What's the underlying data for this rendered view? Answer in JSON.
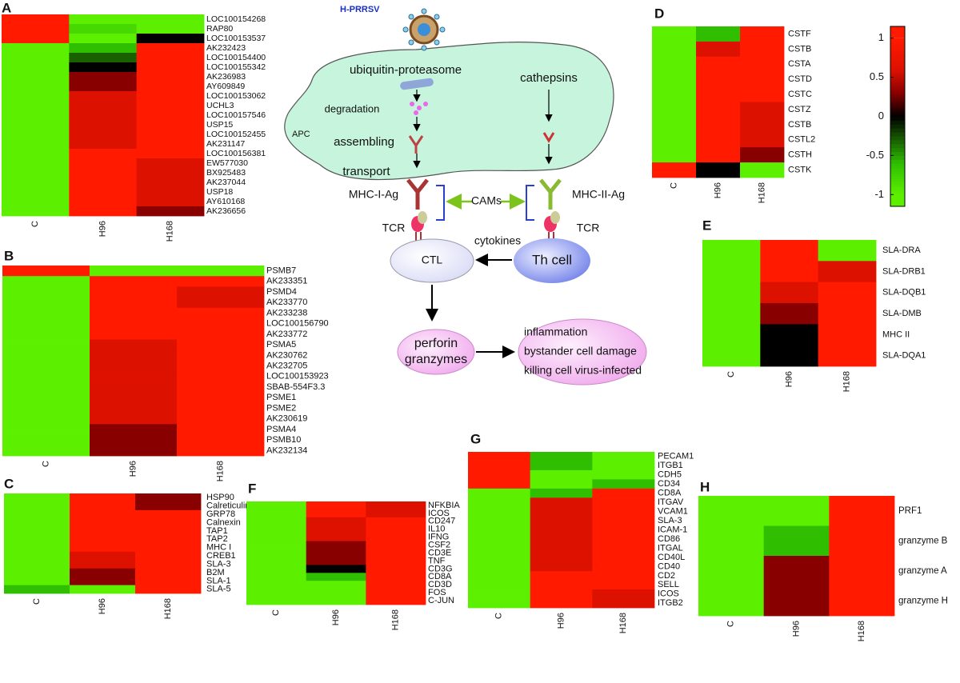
{
  "chart_data": [
    {
      "type": "heatmap",
      "title": "A",
      "columns": [
        "C",
        "H96",
        "H168"
      ],
      "rows": [
        "LOC100154268",
        "RAP80",
        "LOC100153537",
        "AK232423",
        "LOC100154400",
        "LOC100155342",
        "AK236983",
        "AY609849",
        "LOC100153062",
        "UCHL3",
        "LOC100157546",
        "USP15",
        "LOC100152455",
        "AK231147",
        "LOC100156381",
        "EW577030",
        "BX925483",
        "AK237044",
        "USP18",
        "AY610168",
        "AK236656"
      ],
      "values": [
        [
          1,
          -1,
          -1
        ],
        [
          1,
          -0.8,
          -1
        ],
        [
          1,
          -1,
          0
        ],
        [
          -1,
          -0.6,
          1
        ],
        [
          -1,
          -0.3,
          1
        ],
        [
          -1,
          0,
          1
        ],
        [
          -1,
          0.3,
          1
        ],
        [
          -1,
          0.3,
          1
        ],
        [
          -1,
          0.6,
          1
        ],
        [
          -1,
          0.6,
          1
        ],
        [
          -1,
          0.6,
          1
        ],
        [
          -1,
          0.6,
          1
        ],
        [
          -1,
          0.6,
          1
        ],
        [
          -1,
          0.6,
          1
        ],
        [
          -1,
          1,
          1
        ],
        [
          -1,
          1,
          0.6
        ],
        [
          -1,
          1,
          0.6
        ],
        [
          -1,
          1,
          0.6
        ],
        [
          -1,
          1,
          0.6
        ],
        [
          -1,
          1,
          0.6
        ],
        [
          -1,
          1,
          0.3
        ]
      ]
    },
    {
      "type": "heatmap",
      "title": "B",
      "columns": [
        "C",
        "H96",
        "H168"
      ],
      "rows": [
        "PSMB7",
        "AK233351",
        "PSMD4",
        "AK233770",
        "AK233238",
        "LOC100156790",
        "AK233772",
        "PSMA5",
        "AK230762",
        "AK232705",
        "LOC100153923",
        "SBAB-554F3.3",
        "PSME1",
        "PSME2",
        "AK230619",
        "PSMA4",
        "PSMB10",
        "AK232134"
      ],
      "values": [
        [
          1,
          -1,
          -1
        ],
        [
          -1,
          1,
          1
        ],
        [
          -1,
          1,
          0.6
        ],
        [
          -1,
          1,
          0.6
        ],
        [
          -1,
          1,
          1
        ],
        [
          -1,
          1,
          1
        ],
        [
          -1,
          1,
          1
        ],
        [
          -1,
          0.6,
          1
        ],
        [
          -1,
          0.6,
          1
        ],
        [
          -1,
          0.6,
          1
        ],
        [
          -1,
          0.6,
          1
        ],
        [
          -1,
          0.6,
          1
        ],
        [
          -1,
          0.6,
          1
        ],
        [
          -1,
          0.6,
          1
        ],
        [
          -1,
          0.6,
          1
        ],
        [
          -1,
          0.3,
          1
        ],
        [
          -1,
          0.3,
          1
        ],
        [
          -1,
          0.3,
          1
        ]
      ]
    },
    {
      "type": "heatmap",
      "title": "C",
      "columns": [
        "C",
        "H96",
        "H168"
      ],
      "rows": [
        "HSP90",
        "Calreticulin",
        "GRP78",
        "Calnexin",
        "TAP1",
        "TAP2",
        "MHC I",
        "CREB1",
        "SLA-3",
        "B2M",
        "SLA-1",
        "SLA-5"
      ],
      "values": [
        [
          -1,
          1,
          0.3
        ],
        [
          -1,
          1,
          0.3
        ],
        [
          -1,
          1,
          1
        ],
        [
          -1,
          1,
          1
        ],
        [
          -1,
          1,
          1
        ],
        [
          -1,
          1,
          1
        ],
        [
          -1,
          1,
          1
        ],
        [
          -1,
          0.6,
          1
        ],
        [
          -1,
          0.6,
          1
        ],
        [
          -1,
          0.3,
          1
        ],
        [
          -1,
          0.3,
          1
        ],
        [
          -0.6,
          -1,
          1
        ]
      ]
    },
    {
      "type": "heatmap",
      "title": "D",
      "columns": [
        "C",
        "H96",
        "H168"
      ],
      "rows": [
        "CSTF",
        "CSTB",
        "CSTA",
        "CSTD",
        "CSTC",
        "CSTZ",
        "CSTB",
        "CSTL2",
        "CSTH",
        "CSTK"
      ],
      "values": [
        [
          -1,
          -0.6,
          1
        ],
        [
          -1,
          0.6,
          1
        ],
        [
          -1,
          1,
          1
        ],
        [
          -1,
          1,
          1
        ],
        [
          -1,
          1,
          1
        ],
        [
          -1,
          1,
          0.6
        ],
        [
          -1,
          1,
          0.6
        ],
        [
          -1,
          1,
          0.6
        ],
        [
          -1,
          1,
          0.3
        ],
        [
          1,
          0,
          -1
        ]
      ]
    },
    {
      "type": "heatmap",
      "title": "E",
      "columns": [
        "C",
        "H96",
        "H168"
      ],
      "rows": [
        "SLA-DRA",
        "SLA-DRB1",
        "SLA-DQB1",
        "SLA-DMB",
        "MHC II",
        "SLA-DQA1"
      ],
      "values": [
        [
          -1,
          1,
          -1
        ],
        [
          -1,
          1,
          0.6
        ],
        [
          -1,
          0.6,
          1
        ],
        [
          -1,
          0.3,
          1
        ],
        [
          -1,
          0,
          1
        ],
        [
          -1,
          0,
          1
        ]
      ]
    },
    {
      "type": "heatmap",
      "title": "F",
      "columns": [
        "C",
        "H96",
        "H168"
      ],
      "rows": [
        "NFKBIA",
        "ICOS",
        "CD247",
        "IL10",
        "IFNG",
        "CSF2",
        "CD3E",
        "TNF",
        "CD3G",
        "CD8A",
        "CD3D",
        "FOS",
        "C-JUN"
      ],
      "values": [
        [
          -1,
          1,
          0.6
        ],
        [
          -1,
          1,
          0.6
        ],
        [
          -1,
          0.6,
          1
        ],
        [
          -1,
          0.6,
          1
        ],
        [
          -1,
          0.6,
          1
        ],
        [
          -1,
          0.3,
          1
        ],
        [
          -1,
          0.3,
          1
        ],
        [
          -1,
          0.3,
          1
        ],
        [
          -1,
          0,
          1
        ],
        [
          -1,
          -0.6,
          1
        ],
        [
          -1,
          -1,
          1
        ],
        [
          -1,
          -1,
          1
        ],
        [
          -1,
          -1,
          1
        ]
      ]
    },
    {
      "type": "heatmap",
      "title": "G",
      "columns": [
        "C",
        "H96",
        "H168"
      ],
      "rows": [
        "PECAM1",
        "ITGB1",
        "CDH5",
        "CD34",
        "CD8A",
        "ITGAV",
        "VCAM1",
        "SLA-3",
        "ICAM-1",
        "CD86",
        "ITGAL",
        "CD40L",
        "CD40",
        "CD2",
        "SELL",
        "ICOS",
        "ITGB2"
      ],
      "values": [
        [
          1,
          -0.6,
          -1
        ],
        [
          1,
          -0.6,
          -1
        ],
        [
          1,
          -1,
          -1
        ],
        [
          1,
          -1,
          -0.6
        ],
        [
          -1,
          -0.6,
          1
        ],
        [
          -1,
          0.6,
          1
        ],
        [
          -1,
          0.6,
          1
        ],
        [
          -1,
          0.6,
          1
        ],
        [
          -1,
          0.6,
          1
        ],
        [
          -1,
          0.6,
          1
        ],
        [
          -1,
          0.6,
          1
        ],
        [
          -1,
          0.6,
          1
        ],
        [
          -1,
          0.6,
          1
        ],
        [
          -1,
          1,
          1
        ],
        [
          -1,
          1,
          1
        ],
        [
          -1,
          1,
          0.6
        ],
        [
          -1,
          1,
          0.6
        ]
      ]
    },
    {
      "type": "heatmap",
      "title": "H",
      "columns": [
        "C",
        "H96",
        "H168"
      ],
      "rows": [
        "PRF1",
        "granzyme B",
        "granzyme A",
        "granzyme H"
      ],
      "values": [
        [
          -1,
          -1,
          1
        ],
        [
          -1,
          -0.6,
          1
        ],
        [
          -1,
          0.3,
          1
        ],
        [
          -1,
          0.3,
          1
        ]
      ]
    },
    {
      "type": "colorbar",
      "ylim": [
        -1.15,
        1.15
      ],
      "yticks": [
        1,
        0.5,
        0,
        -0.5,
        -1
      ],
      "stops": [
        {
          "value": -1,
          "color": "#5cf000"
        },
        {
          "value": -0.6,
          "color": "#2fbf00"
        },
        {
          "value": 0,
          "color": "#000000"
        },
        {
          "value": 0.3,
          "color": "#880000"
        },
        {
          "value": 0.6,
          "color": "#dd1100"
        },
        {
          "value": 1,
          "color": "#ff1a00"
        }
      ]
    }
  ],
  "diagram": {
    "virus": "H-PRRSV",
    "apc": "APC",
    "proteasome": "ubiquitin-proteasome",
    "cathepsins": "cathepsins",
    "degradation": "degradation",
    "assembling": "assembling",
    "transport": "transport",
    "mhc1": "MHC-I-Ag",
    "mhc2": "MHC-II-Ag",
    "cams": "CAMs",
    "tcr_left": "TCR",
    "tcr_right": "TCR",
    "cytokines": "cytokines",
    "ctl": "CTL",
    "th": "Th cell",
    "effectors": [
      "perforin",
      "granzymes"
    ],
    "outcomes": [
      "inflammation",
      "bystander cell damage",
      "killing cell virus-infected"
    ]
  }
}
